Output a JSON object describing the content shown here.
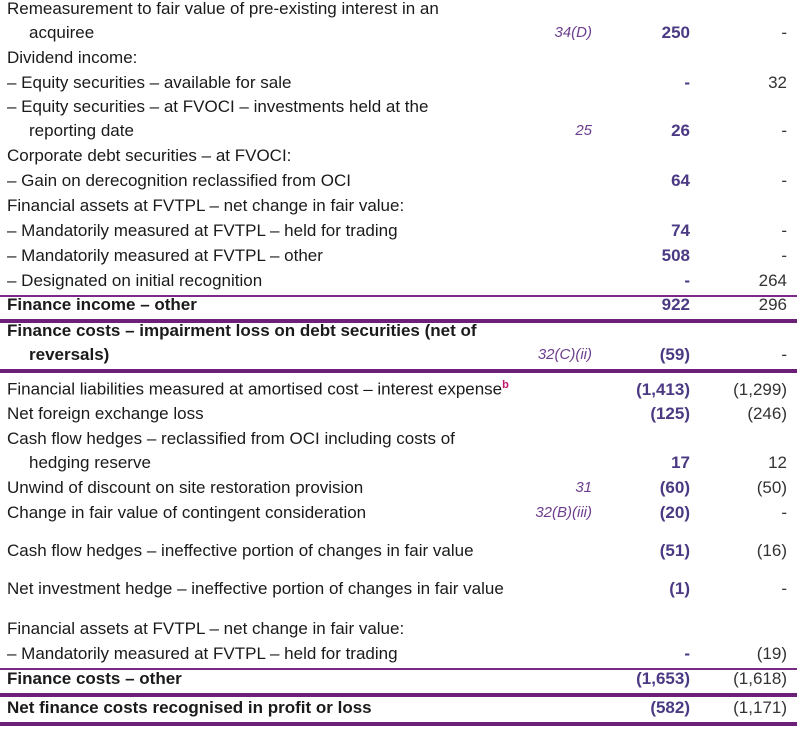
{
  "rows": [
    {
      "label": [
        "Remeasurement to fair value of pre-existing interest in an",
        "acquiree"
      ],
      "note": "34(D)",
      "current": "250",
      "prior": "-"
    },
    {
      "label": [
        "Dividend income:"
      ],
      "note": "",
      "current": "",
      "prior": ""
    },
    {
      "label": [
        "– Equity securities – available for sale"
      ],
      "note": "",
      "current": "-",
      "prior": "32"
    },
    {
      "label": [
        "– Equity securities – at FVOCI – investments held at the",
        "reporting date"
      ],
      "note": "25",
      "current": "26",
      "prior": "-"
    },
    {
      "label": [
        "Corporate debt securities – at FVOCI:"
      ],
      "note": "",
      "current": "",
      "prior": ""
    },
    {
      "label": [
        "– Gain on derecognition reclassified from OCI"
      ],
      "note": "",
      "current": "64",
      "prior": "-"
    },
    {
      "label": [
        "Financial assets at FVTPL – net change in fair value:"
      ],
      "note": "",
      "current": "",
      "prior": ""
    },
    {
      "label": [
        "– Mandatorily measured at FVTPL – held for trading"
      ],
      "note": "",
      "current": "74",
      "prior": "-"
    },
    {
      "label": [
        "– Mandatorily measured at FVTPL – other"
      ],
      "note": "",
      "current": "508",
      "prior": "-"
    },
    {
      "label": [
        "– Designated on initial recognition"
      ],
      "note": "",
      "current": "-",
      "prior": "264"
    },
    {
      "label": [
        "Finance income – other"
      ],
      "note": "",
      "current": "922",
      "prior": "296",
      "bold": true
    },
    {
      "label": [
        "Finance costs – impairment loss on debt securities (net of",
        "reversals)"
      ],
      "note": "32(C)(ii)",
      "current": "(59)",
      "prior": "-",
      "bold": true
    },
    {
      "label": [
        "Financial liabilities measured at amortised cost – interest expense"
      ],
      "footnote": "b",
      "note": "",
      "current": "(1,413)",
      "prior": "(1,299)"
    },
    {
      "label": [
        "Net foreign exchange loss"
      ],
      "note": "",
      "current": "(125)",
      "prior": "(246)"
    },
    {
      "label": [
        "Cash flow hedges – reclassified from OCI including costs of",
        "hedging reserve"
      ],
      "note": "",
      "current": "17",
      "prior": "12"
    },
    {
      "label": [
        "Unwind of discount on site restoration provision"
      ],
      "note": "31",
      "current": "(60)",
      "prior": "(50)"
    },
    {
      "label": [
        "Change in fair value of contingent consideration"
      ],
      "note": "32(B)(iii)",
      "current": "(20)",
      "prior": "-"
    },
    {
      "label": [
        "Cash flow hedges – ineffective portion of changes in fair value"
      ],
      "note": "",
      "current": "(51)",
      "prior": "(16)"
    },
    {
      "label": [
        "Net investment hedge – ineffective portion of changes in fair value"
      ],
      "note": "",
      "current": "(1)",
      "prior": "-"
    },
    {
      "label": [
        "Financial assets at FVTPL – net change in fair value:"
      ],
      "note": "",
      "current": "",
      "prior": ""
    },
    {
      "label": [
        "– Mandatorily measured at FVTPL – held for trading"
      ],
      "note": "",
      "current": "-",
      "prior": "(19)"
    },
    {
      "label": [
        "Finance costs – other"
      ],
      "note": "",
      "current": "(1,653)",
      "prior": "(1,618)",
      "bold": true
    },
    {
      "label": [
        "Net finance costs recognised in profit or loss"
      ],
      "note": "",
      "current": "(582)",
      "prior": "(1,171)",
      "bold": true
    }
  ]
}
